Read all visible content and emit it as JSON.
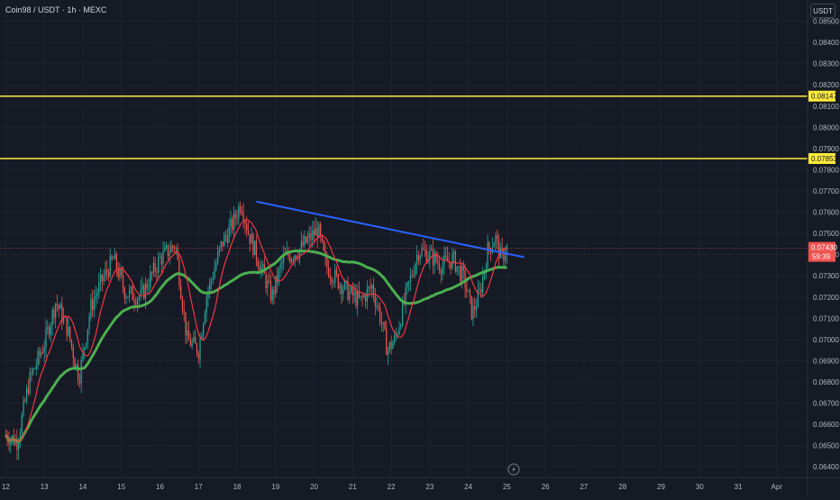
{
  "symbol": {
    "title": "Coin98 / USDT · 1h · MEXC",
    "currency_label": "USDT"
  },
  "colors": {
    "background": "#161a25",
    "grid": "#1f2330",
    "up_candle": "#26a69a",
    "down_candle": "#ef5350",
    "sma_fast": "#f23645",
    "sma_slow": "#4caf50",
    "trendline": "#2962ff",
    "level_line": "#ffeb3b",
    "price_line": "#ef5350"
  },
  "chart_data": {
    "type": "candlestick",
    "title": "Coin98 / USDT · 1h · MEXC",
    "y_axis": {
      "side": "right",
      "ylim": [
        0.0635,
        0.086
      ],
      "ticks": [
        "0.06400",
        "0.06500",
        "0.06600",
        "0.06700",
        "0.06800",
        "0.06900",
        "0.07000",
        "0.07100",
        "0.07200",
        "0.07300",
        "0.07400",
        "0.07500",
        "0.07600",
        "0.07700",
        "0.07800",
        "0.07900",
        "0.08000",
        "0.08100",
        "0.08200",
        "0.08300",
        "0.08400",
        "0.08500"
      ]
    },
    "x_axis": {
      "ticks": [
        "12",
        "13",
        "14",
        "15",
        "16",
        "17",
        "18",
        "19",
        "20",
        "21",
        "22",
        "23",
        "24",
        "25",
        "26",
        "27",
        "28",
        "29",
        "30",
        "31",
        "Apr"
      ],
      "tick_days": [
        12,
        13,
        14,
        15,
        16,
        17,
        18,
        19,
        20,
        21,
        22,
        23,
        24,
        25,
        26,
        27,
        28,
        29,
        30,
        31,
        32
      ],
      "range_days": [
        11.85,
        32.8
      ]
    },
    "horizontal_levels": [
      {
        "price": 0.08147,
        "label": "0.08147"
      },
      {
        "price": 0.07853,
        "label": "0.07853"
      }
    ],
    "trendline": {
      "from": {
        "day": 18.5,
        "price": 0.0765
      },
      "to": {
        "day": 25.45,
        "price": 0.07388
      }
    },
    "current_price": {
      "price": 0.0743,
      "label": "0.07430",
      "countdown": "59:39"
    },
    "candles_daily_path": [
      {
        "day": 12.0,
        "price": 0.0655
      },
      {
        "day": 12.3,
        "price": 0.0652
      },
      {
        "day": 12.6,
        "price": 0.068
      },
      {
        "day": 13.0,
        "price": 0.0698
      },
      {
        "day": 13.3,
        "price": 0.0718
      },
      {
        "day": 13.6,
        "price": 0.0705
      },
      {
        "day": 13.9,
        "price": 0.0682
      },
      {
        "day": 14.2,
        "price": 0.0715
      },
      {
        "day": 14.5,
        "price": 0.0728
      },
      {
        "day": 14.8,
        "price": 0.0738
      },
      {
        "day": 15.1,
        "price": 0.0722
      },
      {
        "day": 15.5,
        "price": 0.072
      },
      {
        "day": 16.0,
        "price": 0.0738
      },
      {
        "day": 16.4,
        "price": 0.0745
      },
      {
        "day": 16.7,
        "price": 0.07
      },
      {
        "day": 17.0,
        "price": 0.0695
      },
      {
        "day": 17.2,
        "price": 0.072
      },
      {
        "day": 17.6,
        "price": 0.0745
      },
      {
        "day": 17.9,
        "price": 0.0755
      },
      {
        "day": 18.1,
        "price": 0.0765
      },
      {
        "day": 18.3,
        "price": 0.075
      },
      {
        "day": 18.6,
        "price": 0.0735
      },
      {
        "day": 18.9,
        "price": 0.072
      },
      {
        "day": 19.2,
        "price": 0.0738
      },
      {
        "day": 19.6,
        "price": 0.0742
      },
      {
        "day": 19.9,
        "price": 0.0748
      },
      {
        "day": 20.1,
        "price": 0.0752
      },
      {
        "day": 20.3,
        "price": 0.0735
      },
      {
        "day": 20.6,
        "price": 0.0728
      },
      {
        "day": 20.9,
        "price": 0.0722
      },
      {
        "day": 21.2,
        "price": 0.0718
      },
      {
        "day": 21.5,
        "price": 0.0725
      },
      {
        "day": 21.7,
        "price": 0.0712
      },
      {
        "day": 21.9,
        "price": 0.0695
      },
      {
        "day": 22.1,
        "price": 0.07
      },
      {
        "day": 22.4,
        "price": 0.0722
      },
      {
        "day": 22.7,
        "price": 0.0742
      },
      {
        "day": 23.0,
        "price": 0.074
      },
      {
        "day": 23.3,
        "price": 0.0735
      },
      {
        "day": 23.6,
        "price": 0.0738
      },
      {
        "day": 23.9,
        "price": 0.0728
      },
      {
        "day": 24.1,
        "price": 0.0712
      },
      {
        "day": 24.3,
        "price": 0.0722
      },
      {
        "day": 24.5,
        "price": 0.0742
      },
      {
        "day": 24.7,
        "price": 0.0748
      },
      {
        "day": 24.85,
        "price": 0.0738
      },
      {
        "day": 25.0,
        "price": 0.0743
      }
    ]
  },
  "axis_icons": {
    "event_marker": "lightning-icon"
  }
}
